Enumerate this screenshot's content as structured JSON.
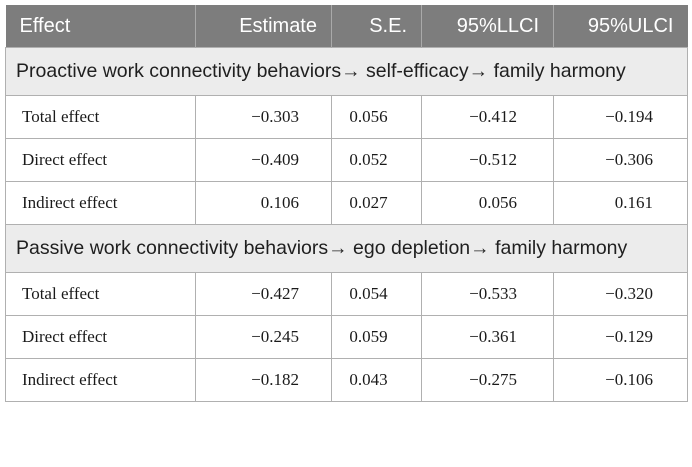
{
  "table": {
    "columns": [
      "Effect",
      "Estimate",
      "S.E.",
      "95%LLCI",
      "95%ULCI"
    ],
    "sections": [
      {
        "title": "Proactive work connectivity behaviors→ self-efficacy→ family harmony",
        "rows": [
          [
            "Total effect",
            "−0.303",
            "0.056",
            "−0.412",
            "−0.194"
          ],
          [
            "Direct effect",
            "−0.409",
            "0.052",
            "−0.512",
            "−0.306"
          ],
          [
            "Indirect effect",
            "0.106",
            "0.027",
            "0.056",
            "0.161"
          ]
        ]
      },
      {
        "title": "Passive work connectivity behaviors→ ego depletion→ family harmony",
        "rows": [
          [
            "Total effect",
            "−0.427",
            "0.054",
            "−0.533",
            "−0.320"
          ],
          [
            "Direct effect",
            "−0.245",
            "0.059",
            "−0.361",
            "−0.129"
          ],
          [
            "Indirect effect",
            "−0.182",
            "0.043",
            "−0.275",
            "−0.106"
          ]
        ]
      }
    ]
  }
}
